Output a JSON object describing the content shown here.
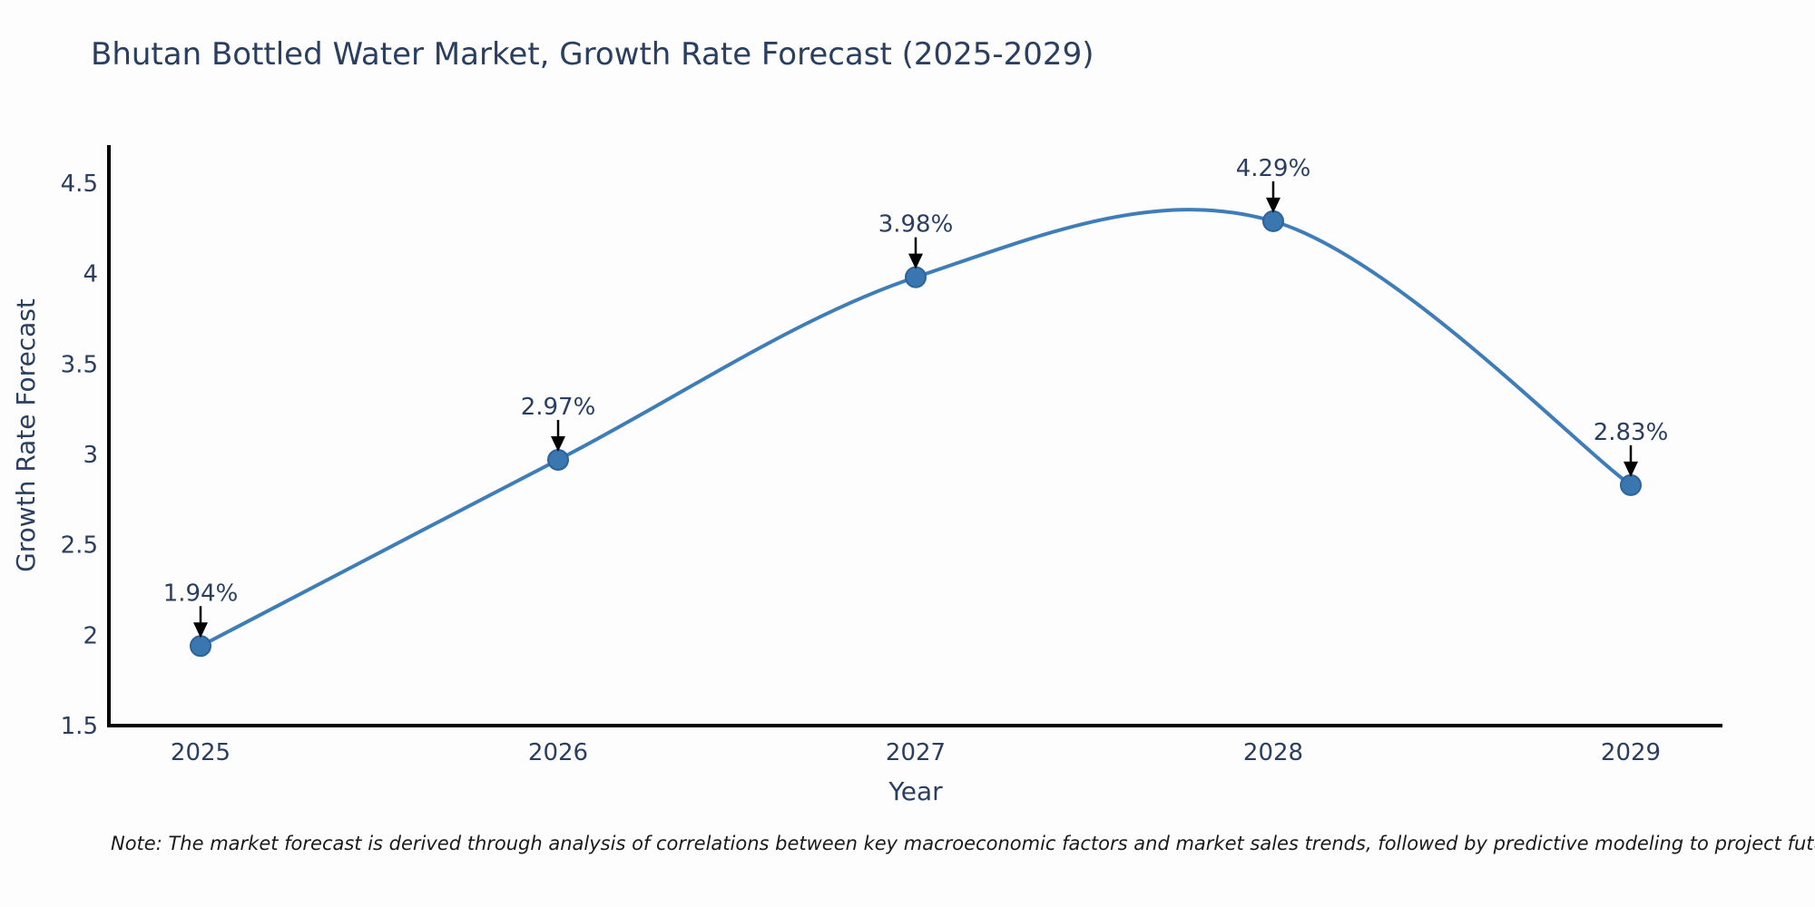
{
  "chart": {
    "title": "Bhutan Bottled Water Market, Growth Rate Forecast (2025-2029)",
    "note": "Note: The market forecast is derived through analysis of correlations between key macroeconomic factors and market sales trends, followed by predictive modeling to project future sales"
  },
  "chart_data": {
    "type": "line",
    "title": "Bhutan Bottled Water Market, Growth Rate Forecast (2025-2029)",
    "x": [
      "2025",
      "2026",
      "2027",
      "2028",
      "2029"
    ],
    "series": [
      {
        "name": "Growth Rate Forecast",
        "values": [
          1.94,
          2.97,
          3.98,
          4.29,
          2.83
        ]
      }
    ],
    "point_labels": [
      "1.94%",
      "2.97%",
      "3.98%",
      "4.29%",
      "2.83%"
    ],
    "xlabel": "Year",
    "ylabel": "Growth Rate Forecast",
    "ylim": [
      1.5,
      4.72
    ],
    "yticks": [
      1.5,
      2,
      2.5,
      3,
      3.5,
      4,
      4.5
    ],
    "grid": false,
    "legend": "none",
    "line_shape": "spline",
    "annotations": "percentage value above each point with a black arrow pointing down to the marker",
    "colors": {
      "line": "#3f7db9",
      "marker_fill": "#3a76b0",
      "marker_edge": "#2d639a",
      "axis": "#000000",
      "arrow": "#000000",
      "text": "#2a3f5f",
      "note": "#1a1a1a",
      "background": "#fdfdfe"
    }
  }
}
